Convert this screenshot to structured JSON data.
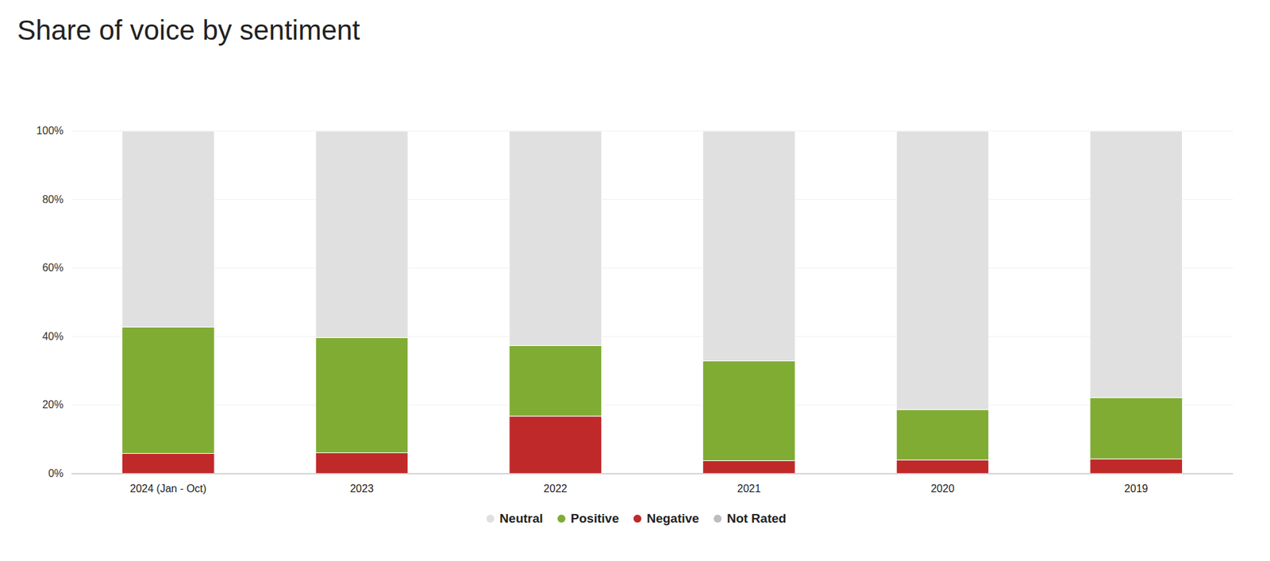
{
  "chart_data": {
    "type": "bar",
    "title": "Share of voice by sentiment",
    "stacked": true,
    "categories": [
      "2024 (Jan - Oct)",
      "2023",
      "2022",
      "2021",
      "2020",
      "2019"
    ],
    "series": [
      {
        "name": "Neutral",
        "color": "#e0e0e0",
        "values": [
          57.2,
          60.3,
          62.6,
          67.1,
          81.3,
          77.8
        ]
      },
      {
        "name": "Positive",
        "color": "#80ac34",
        "values": [
          36.9,
          33.6,
          20.6,
          29.1,
          14.7,
          17.9
        ]
      },
      {
        "name": "Negative",
        "color": "#c0292a",
        "values": [
          5.9,
          6.1,
          16.8,
          3.8,
          4.0,
          4.3
        ]
      },
      {
        "name": "Not Rated",
        "color": "#bdbdbd",
        "values": [
          0,
          0,
          0,
          0,
          0,
          0
        ]
      }
    ],
    "ylim": [
      0,
      100
    ],
    "yticks": [
      {
        "value": 0,
        "label": "0%"
      },
      {
        "value": 20,
        "label": "20%"
      },
      {
        "value": 40,
        "label": "40%"
      },
      {
        "value": 60,
        "label": "60%"
      },
      {
        "value": 80,
        "label": "80%"
      },
      {
        "value": 100,
        "label": "100%"
      }
    ],
    "grid": true,
    "legend": "bottom"
  }
}
